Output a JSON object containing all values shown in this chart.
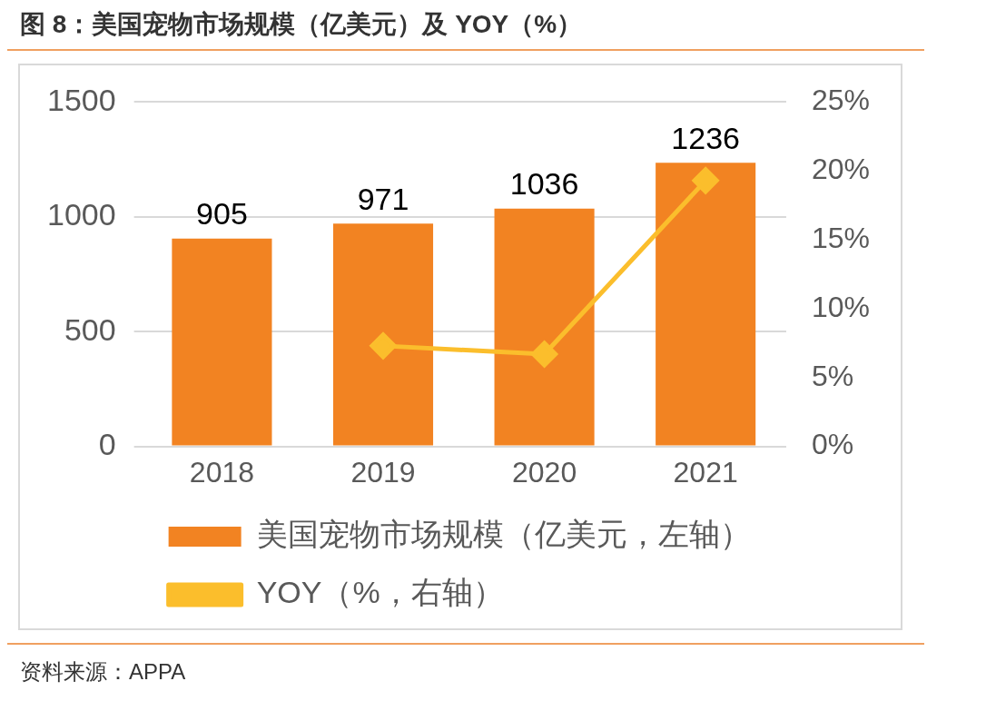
{
  "chart_data": {
    "type": "bar",
    "title": "图 8：美国宠物市场规模（亿美元）及 YOY（%）",
    "categories": [
      "2018",
      "2019",
      "2020",
      "2021"
    ],
    "series": [
      {
        "name": "美国宠物市场规模（亿美元，左轴）",
        "color": "#f28322",
        "values": [
          905,
          971,
          1036,
          1236
        ],
        "value_labels": [
          "905",
          "971",
          "1036",
          "1236"
        ]
      },
      {
        "name": "YOY（%，右轴）",
        "type": "line",
        "axis": "y2",
        "color": "#fbbe2c",
        "marker": "diamond",
        "values": [
          null,
          7.3,
          6.7,
          19.3
        ]
      }
    ],
    "ylim": [
      0,
      1500
    ],
    "yticks": [
      0,
      500,
      1000,
      1500
    ],
    "y2lim": [
      0,
      25
    ],
    "y2ticks": [
      {
        "value": 0,
        "label": "0%"
      },
      {
        "value": 5,
        "label": "5%"
      },
      {
        "value": 10,
        "label": "10%"
      },
      {
        "value": 15,
        "label": "15%"
      },
      {
        "value": 20,
        "label": "20%"
      },
      {
        "value": 25,
        "label": "25%"
      }
    ],
    "grid": "y",
    "legend": "bottom",
    "annotations": [
      "资料来源：APPA"
    ]
  }
}
